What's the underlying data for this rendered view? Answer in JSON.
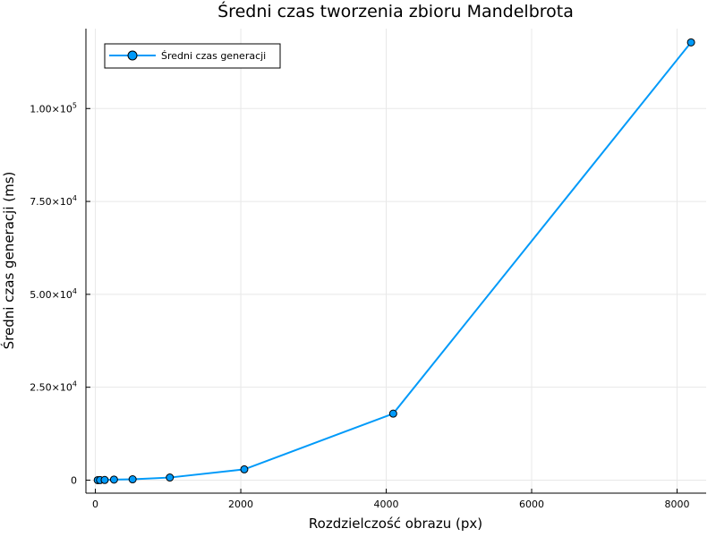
{
  "chart_data": {
    "type": "line",
    "title": "Średni czas tworzenia zbioru Mandelbrota",
    "xlabel": "Rozdzielczość obrazu (px)",
    "ylabel": "Średni czas generacji (ms)",
    "xlim": [
      -130,
      8400
    ],
    "ylim": [
      -3500,
      121500
    ],
    "x_ticks": [
      {
        "value": 0,
        "label": "0"
      },
      {
        "value": 2000,
        "label": "2000"
      },
      {
        "value": 4000,
        "label": "4000"
      },
      {
        "value": 6000,
        "label": "6000"
      },
      {
        "value": 8000,
        "label": "8000"
      }
    ],
    "y_ticks": [
      {
        "value": 0,
        "label": "0",
        "exp": ""
      },
      {
        "value": 25000,
        "label": "2.50×10",
        "exp": "4"
      },
      {
        "value": 50000,
        "label": "5.00×10",
        "exp": "4"
      },
      {
        "value": 75000,
        "label": "7.50×10",
        "exp": "4"
      },
      {
        "value": 100000,
        "label": "1.00×10",
        "exp": "5"
      }
    ],
    "grid": true,
    "legend_position": "top-left",
    "series": [
      {
        "name": "Średni czas generacji",
        "color": "#009af9",
        "marker": "circle",
        "x": [
          32,
          64,
          128,
          256,
          512,
          1024,
          2048,
          4096,
          8192
        ],
        "y": [
          5,
          15,
          45,
          150,
          230,
          700,
          2900,
          17900,
          117800
        ]
      }
    ]
  }
}
